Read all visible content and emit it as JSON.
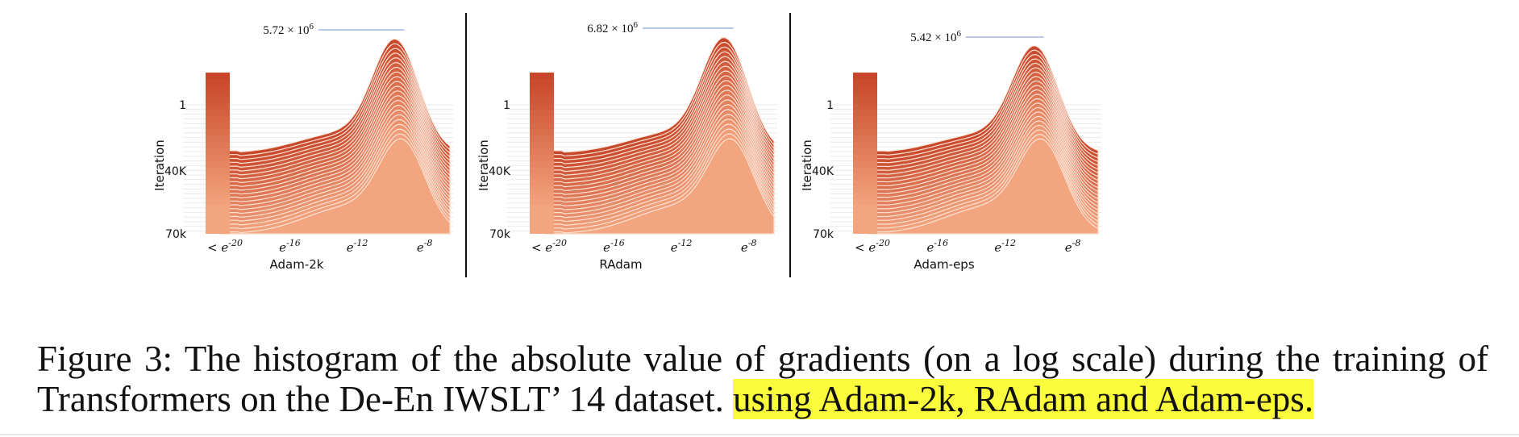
{
  "chart_data": [
    {
      "type": "area",
      "xlabel": "Adam-2k",
      "ylabel": "Iteration",
      "y_ticks": [
        "1",
        "40K",
        "70k"
      ],
      "x_ticks": [
        "< e^-20",
        "e^-16",
        "e^-12",
        "e^-8"
      ],
      "peak_annotation": "5.72 × 10^6",
      "peak_value": 5720000,
      "peak_log_gradient": -9.5,
      "layers": 22,
      "colors": {
        "top": "#c8462a",
        "bottom": "#f3a57f"
      }
    },
    {
      "type": "area",
      "xlabel": "RAdam",
      "ylabel": "Iteration",
      "y_ticks": [
        "1",
        "40K",
        "70k"
      ],
      "x_ticks": [
        "< e^-20",
        "e^-16",
        "e^-12",
        "e^-8"
      ],
      "peak_annotation": "6.82 × 10^6",
      "peak_value": 6820000,
      "peak_log_gradient": -9.2,
      "layers": 22,
      "colors": {
        "top": "#c8462a",
        "bottom": "#f3a57f"
      }
    },
    {
      "type": "area",
      "xlabel": "Adam-eps",
      "ylabel": "Iteration",
      "y_ticks": [
        "1",
        "40K",
        "70k"
      ],
      "x_ticks": [
        "< e^-20",
        "e^-16",
        "e^-12",
        "e^-8"
      ],
      "peak_annotation": "5.42 × 10^6",
      "peak_value": 5420000,
      "peak_log_gradient": -10.0,
      "layers": 22,
      "colors": {
        "top": "#c8462a",
        "bottom": "#f3a57f"
      }
    }
  ],
  "caption": {
    "text": "Figure 3: The histogram of the absolute value of gradients (on a log scale) during the training of Transformers on the De-En IWSLT’ 14 dataset. ",
    "highlighted": "using Adam-2k, RAdam and Adam-eps."
  }
}
